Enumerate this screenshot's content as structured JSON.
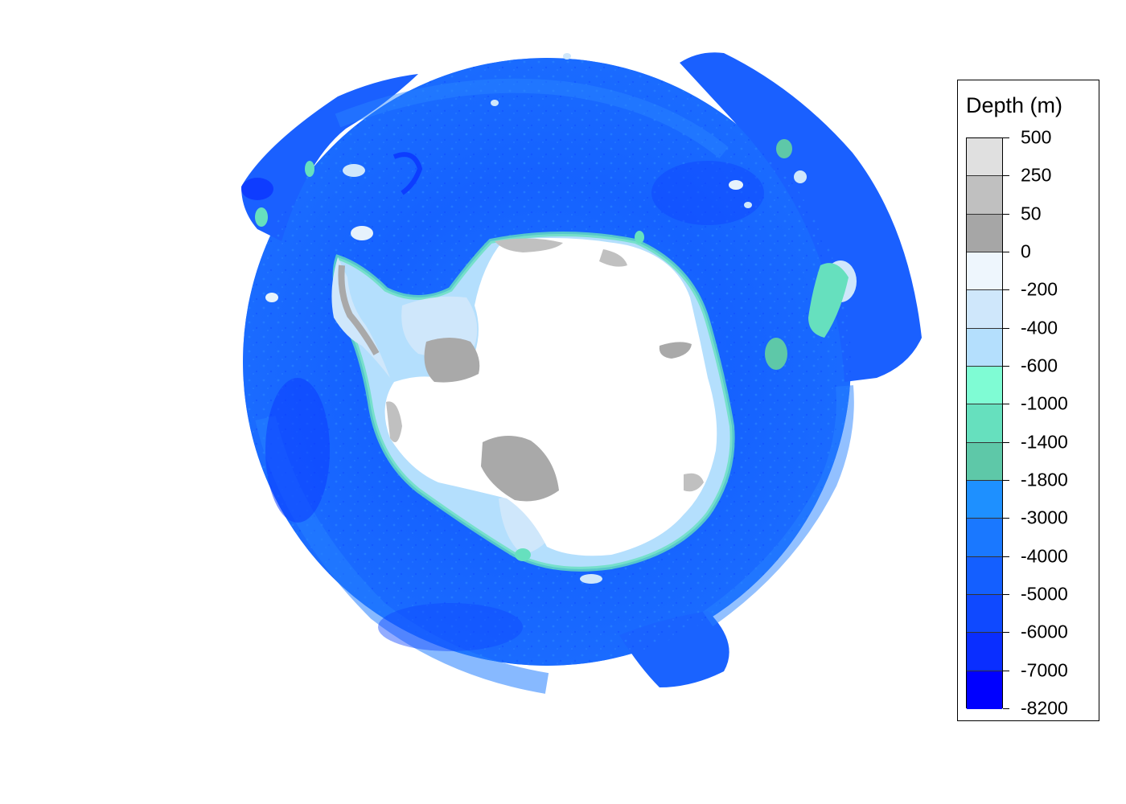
{
  "legend": {
    "title": "Depth (m)",
    "breaks": [
      "500",
      "250",
      "50",
      "0",
      "-200",
      "-400",
      "-600",
      "-1000",
      "-1400",
      "-1800",
      "-3000",
      "-4000",
      "-5000",
      "-6000",
      "-7000",
      "-8200"
    ],
    "colors": [
      "#e0e0e0",
      "#c0c0c0",
      "#a6a6a6",
      "#eef6fd",
      "#cfe7fb",
      "#b4dffd",
      "#7ffcd4",
      "#66e0be",
      "#5ec8a8",
      "#1e90ff",
      "#1a78ff",
      "#145fff",
      "#0f49ff",
      "#0a2eff",
      "#0000ff"
    ]
  },
  "map": {
    "ocean_colors": {
      "deep": "#1451ff",
      "mid": "#1c6dff",
      "shelf": "#1e90ff"
    },
    "land_colors": {
      "ice": "#ffffff",
      "high": "#c0c0c0",
      "low": "#a9a9a9"
    },
    "shallow_colors": {
      "light": "#cfe7fb",
      "mid": "#b4dffd",
      "green": "#66e0be"
    }
  }
}
